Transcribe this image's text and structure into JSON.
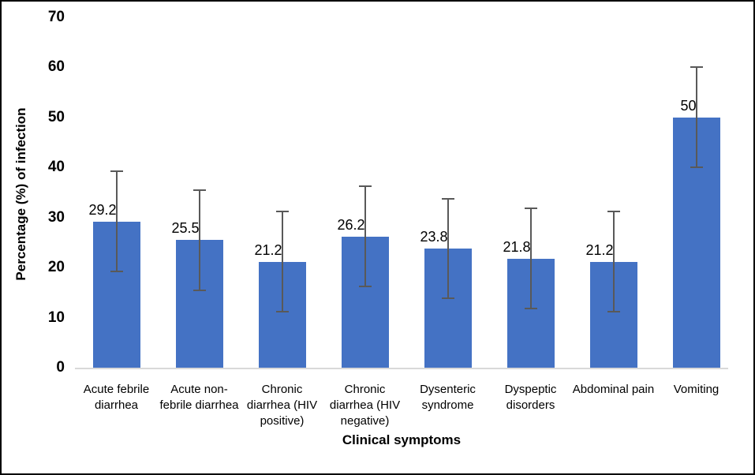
{
  "figure": {
    "background": "#ffffff",
    "border_color": "#000000"
  },
  "chart_data": {
    "type": "bar",
    "title": "",
    "xlabel": "Clinical symptoms",
    "ylabel": "Percentage (%) of infection",
    "categories": [
      "Acute febrile diarrhea",
      "Acute non-febrile diarrhea",
      "Chronic diarrhea (HIV positive)",
      "Chronic diarrhea (HIV negative)",
      "Dysenteric syndrome",
      "Dyspeptic disorders",
      "Abdominal pain",
      "Vomiting"
    ],
    "values": [
      29.2,
      25.5,
      21.2,
      26.2,
      23.8,
      21.8,
      21.2,
      50
    ],
    "data_labels": [
      "29.2",
      "25.5",
      "21.2",
      "26.2",
      "23.8",
      "21.8",
      "21.2",
      "50"
    ],
    "error_plus": [
      10,
      10,
      10,
      10,
      10,
      10,
      10,
      10
    ],
    "error_minus": [
      10,
      10,
      10,
      10,
      10,
      10,
      10,
      10
    ],
    "yticks": [
      0,
      10,
      20,
      30,
      40,
      50,
      60,
      70
    ],
    "ylim": [
      0,
      70
    ],
    "grid": false,
    "legend": "none",
    "bar_color": "#4472C4",
    "error_bar_color": "#595959",
    "axis_line_color": "#D9D9D9",
    "text_color": "#000000"
  }
}
